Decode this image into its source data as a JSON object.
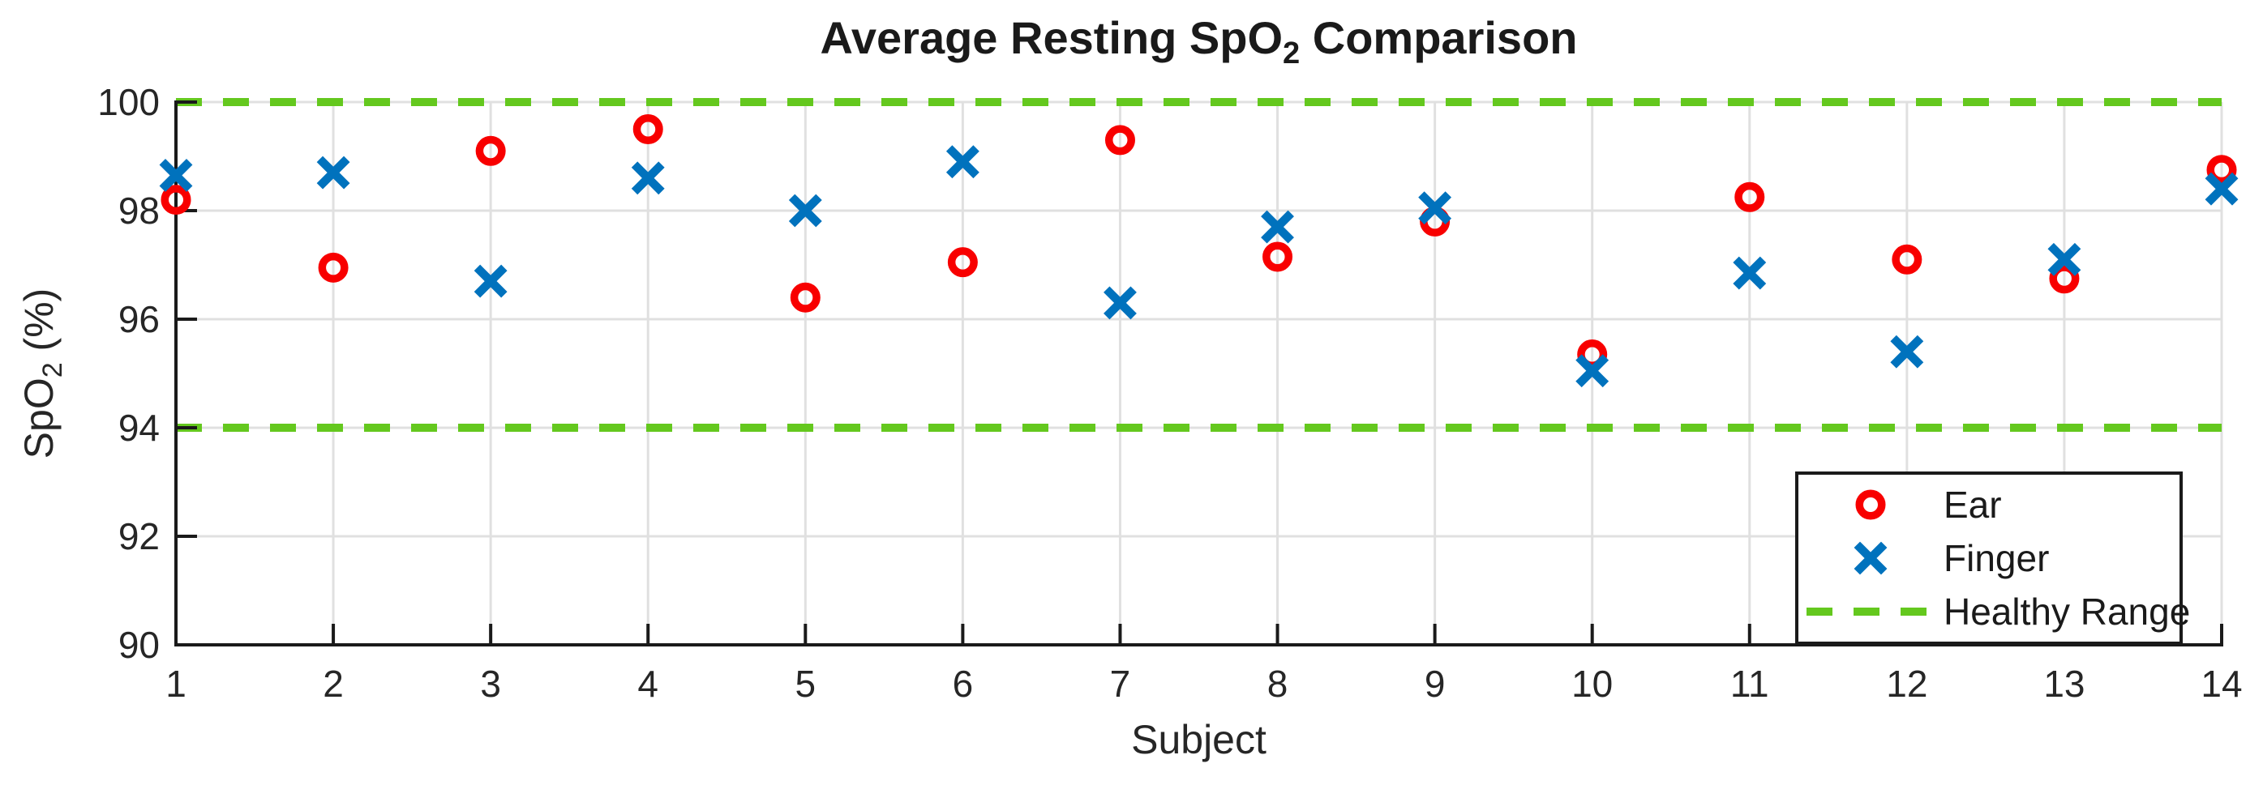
{
  "chart_data": {
    "type": "scatter",
    "title": {
      "pre": "Average Resting SpO",
      "sub": "2",
      "post": " Comparison"
    },
    "xlabel": "Subject",
    "ylabel": {
      "pre": "SpO",
      "sub": "2",
      "post": " (%)"
    },
    "categories": [
      1,
      2,
      3,
      4,
      5,
      6,
      7,
      8,
      9,
      10,
      11,
      12,
      13,
      14
    ],
    "series": [
      {
        "name": "Ear",
        "marker": "circle",
        "color": "#f80000",
        "values": [
          98.2,
          96.95,
          99.1,
          99.5,
          96.4,
          97.05,
          99.3,
          97.15,
          97.8,
          95.35,
          98.25,
          97.1,
          96.75,
          98.75
        ]
      },
      {
        "name": "Finger",
        "marker": "x",
        "color": "#0072bd",
        "values": [
          98.65,
          98.7,
          96.7,
          98.6,
          98.0,
          98.9,
          96.3,
          97.7,
          98.05,
          95.05,
          96.85,
          95.4,
          97.1,
          98.4
        ]
      }
    ],
    "reference_lines": [
      {
        "name": "Healthy Range",
        "y": 100,
        "style": "dashed",
        "color": "#64c81e"
      },
      {
        "name": "Healthy Range",
        "y": 94,
        "style": "dashed",
        "color": "#64c81e"
      }
    ],
    "ylim": [
      90,
      100
    ],
    "yticks": [
      90,
      92,
      94,
      96,
      98,
      100
    ],
    "xticks": [
      1,
      2,
      3,
      4,
      5,
      6,
      7,
      8,
      9,
      10,
      11,
      12,
      13,
      14
    ],
    "grid": true,
    "legend": {
      "position": "southeast",
      "items": [
        {
          "label": "Ear",
          "marker": "circle",
          "color": "#f80000"
        },
        {
          "label": "Finger",
          "marker": "x",
          "color": "#0072bd"
        },
        {
          "label": "Healthy Range",
          "marker": "dash",
          "color": "#64c81e"
        }
      ]
    },
    "colors": {
      "ear": "#f80000",
      "finger": "#0072bd",
      "healthy_range": "#64c81e",
      "grid": "#e0e0e0",
      "axis": "#1a1a1a",
      "text": "#262626"
    }
  }
}
